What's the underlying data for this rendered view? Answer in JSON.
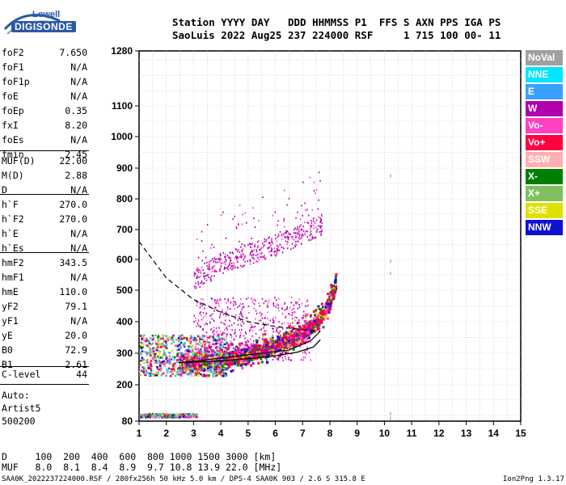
{
  "logo": {
    "top": "Lowell",
    "bottom": "DIGISONDE"
  },
  "header": {
    "line1": "Station YYYY DAY   DDD HHMMSS P1  FFS S AXN PPS IGA PS",
    "line2": "SaoLuis 2022 Aug25 237 224000 RSF     1 715 100 00- 11"
  },
  "params_group1": [
    {
      "label": "foF2",
      "value": "7.650"
    },
    {
      "label": "foF1",
      "value": "N/A"
    },
    {
      "label": "foF1p",
      "value": "N/A"
    },
    {
      "label": "foE",
      "value": "N/A"
    },
    {
      "label": "foEp",
      "value": "0.35"
    },
    {
      "label": "fxI",
      "value": "8.20"
    },
    {
      "label": "foEs",
      "value": "N/A"
    },
    {
      "label": "fmin",
      "value": "2.45"
    }
  ],
  "params_group2": [
    {
      "label": "MUF(D)",
      "value": "22.00"
    },
    {
      "label": "M(D)",
      "value": "2.88"
    },
    {
      "label": "D",
      "value": "N/A"
    }
  ],
  "params_group3": [
    {
      "label": "h`F",
      "value": "270.0"
    },
    {
      "label": "h`F2",
      "value": "270.0"
    },
    {
      "label": "h`E",
      "value": "N/A"
    },
    {
      "label": "h`Es",
      "value": "N/A"
    }
  ],
  "params_group4": [
    {
      "label": "hmF2",
      "value": "343.5"
    },
    {
      "label": "hmF1",
      "value": "N/A"
    },
    {
      "label": "hmE",
      "value": "110.0"
    },
    {
      "label": "yF2",
      "value": "79.1"
    },
    {
      "label": "yF1",
      "value": "N/A"
    },
    {
      "label": "yE",
      "value": "20.0"
    },
    {
      "label": "B0",
      "value": "72.9"
    },
    {
      "label": "B1",
      "value": "2.61"
    }
  ],
  "params_group5": [
    {
      "label": "C-level",
      "value": "44"
    }
  ],
  "auto_block": "Auto:\nArtist5\n500200",
  "legend": [
    {
      "label": "NoVal",
      "color": "#a0a0a0"
    },
    {
      "label": "NNE",
      "color": "#00e5ff"
    },
    {
      "label": "E",
      "color": "#3aa0ff"
    },
    {
      "label": "W",
      "color": "#b000b0"
    },
    {
      "label": "Vo-",
      "color": "#ff40c0"
    },
    {
      "label": "Vo+",
      "color": "#ff0040"
    },
    {
      "label": "SSW",
      "color": "#ffb0b0"
    },
    {
      "label": "X-",
      "color": "#008000"
    },
    {
      "label": "X+",
      "color": "#80c060"
    },
    {
      "label": "SSE",
      "color": "#e0e000"
    },
    {
      "label": "NNW",
      "color": "#1010d0"
    }
  ],
  "footer": {
    "d_line": "D     100  200  400  600  800 1000 1500 3000 [km]",
    "muf_line": "MUF   8.0  8.1  8.4  8.9  9.7 10.8 13.9 22.0 [MHz]",
    "file_line": "SAA0K_2022237224000.RSF / 280fx256h 50 kHz 5.0 km / DPS-4 SAA0K 903 / 2.6 S 315.8 E",
    "version": "Ion2Png 1.3.17"
  },
  "chart_data": {
    "type": "scatter",
    "x_ticks": [
      "1",
      "2",
      "3",
      "4",
      "5",
      "6",
      "7",
      "8",
      "9",
      "10",
      "11",
      "12",
      "13",
      "14",
      "15"
    ],
    "y_ticks": [
      "80",
      "200",
      "300",
      "400",
      "500",
      "600",
      "700",
      "800",
      "900",
      "1000",
      "1100",
      "1280"
    ],
    "xlim": [
      1,
      15
    ],
    "ylim": [
      80,
      1280
    ],
    "y_scale": "nonlinear (compressed at top)",
    "grid": true,
    "traces": {
      "o_trace_f2": {
        "x": [
          2.45,
          3,
          3.5,
          4,
          4.5,
          5,
          5.5,
          6,
          6.5,
          7,
          7.4,
          7.65,
          7.9,
          8.1,
          8.2
        ],
        "y": [
          270,
          272,
          276,
          282,
          290,
          300,
          312,
          328,
          345,
          370,
          395,
          420,
          455,
          495,
          540
        ]
      },
      "x_trace": {
        "x": [
          5.0,
          5.5,
          6.0,
          6.5,
          7.0,
          7.5,
          8.0,
          8.2
        ],
        "y": [
          320,
          330,
          345,
          365,
          390,
          420,
          470,
          520
        ]
      },
      "spread_f_multihop": {
        "x": [
          3,
          3.5,
          4,
          5,
          6,
          7,
          7.7
        ],
        "y": [
          540,
          560,
          590,
          620,
          650,
          690,
          720
        ]
      },
      "sporadic_low": {
        "x": [
          1,
          2,
          3,
          4
        ],
        "y": [
          100,
          100,
          100,
          100
        ]
      }
    },
    "profile_curve": {
      "x": [
        1,
        2,
        3,
        4,
        5,
        6,
        7,
        7.65,
        7.3,
        6.5,
        5,
        4,
        3,
        2.45
      ],
      "y": [
        660,
        540,
        470,
        430,
        400,
        385,
        375,
        370,
        340,
        310,
        295,
        285,
        275,
        270
      ]
    },
    "solid_curve": {
      "x": [
        2.45,
        3,
        4,
        5,
        6,
        6.8,
        7.4,
        7.65
      ],
      "y": [
        270,
        272,
        276,
        283,
        292,
        303,
        320,
        343
      ]
    }
  }
}
